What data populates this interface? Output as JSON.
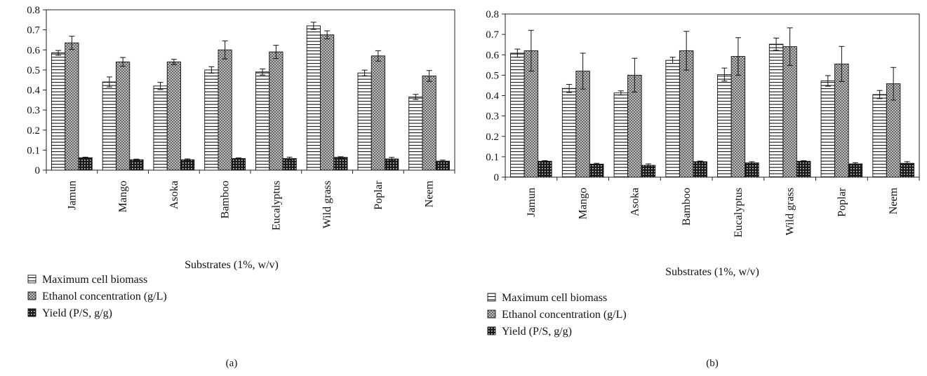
{
  "chart_data": [
    {
      "type": "bar",
      "panel_label": "(a)",
      "title": "",
      "xlabel": "Substrates (1%, w/v)",
      "ylabel": "",
      "ylim": [
        0,
        0.8
      ],
      "yticks": [
        "0",
        "0.1",
        "0.2",
        "0.3",
        "0.4",
        "0.5",
        "0.6",
        "0.7",
        "0.8"
      ],
      "grid": false,
      "legend_position": "bottom-left",
      "categories": [
        "Jamun",
        "Mango",
        "Asoka",
        "Bamboo",
        "Eucalyptus",
        "Wild grass",
        "Poplar",
        "Neem"
      ],
      "series": [
        {
          "name": "Maximum cell biomass",
          "pattern": "horizontal-lines",
          "values": [
            0.585,
            0.44,
            0.42,
            0.5,
            0.49,
            0.72,
            0.485,
            0.365
          ],
          "errors": [
            0.012,
            0.025,
            0.018,
            0.016,
            0.015,
            0.018,
            0.014,
            0.013
          ]
        },
        {
          "name": "Ethanol concentration (g/L)",
          "pattern": "crosshatch",
          "values": [
            0.635,
            0.54,
            0.54,
            0.6,
            0.59,
            0.675,
            0.57,
            0.47
          ],
          "errors": [
            0.033,
            0.022,
            0.013,
            0.045,
            0.033,
            0.02,
            0.026,
            0.027
          ]
        },
        {
          "name": "Yield (P/S, g/g)",
          "pattern": "dense-check",
          "values": [
            0.062,
            0.052,
            0.052,
            0.058,
            0.058,
            0.064,
            0.056,
            0.045
          ],
          "errors": [
            0.003,
            0.003,
            0.004,
            0.003,
            0.007,
            0.003,
            0.008,
            0.005
          ]
        }
      ]
    },
    {
      "type": "bar",
      "panel_label": "(b)",
      "title": "",
      "xlabel": "Substrates (1%, w/v)",
      "ylabel": "",
      "ylim": [
        0,
        0.8
      ],
      "yticks": [
        "0",
        "0.1",
        "0.2",
        "0.3",
        "0.4",
        "0.5",
        "0.6",
        "0.7",
        "0.8"
      ],
      "grid": false,
      "legend_position": "bottom-left",
      "categories": [
        "Jamun",
        "Mango",
        "Asoka",
        "Bamboo",
        "Eucalyptus",
        "Wild grass",
        "Poplar",
        "Neem"
      ],
      "series": [
        {
          "name": "Maximum cell biomass",
          "pattern": "horizontal-lines",
          "values": [
            0.608,
            0.435,
            0.413,
            0.573,
            0.503,
            0.652,
            0.472,
            0.405
          ],
          "errors": [
            0.02,
            0.02,
            0.01,
            0.015,
            0.032,
            0.03,
            0.026,
            0.02
          ]
        },
        {
          "name": "Ethanol concentration (g/L)",
          "pattern": "crosshatch",
          "values": [
            0.62,
            0.52,
            0.5,
            0.62,
            0.592,
            0.64,
            0.555,
            0.458
          ],
          "errors": [
            0.1,
            0.088,
            0.083,
            0.095,
            0.092,
            0.092,
            0.086,
            0.08
          ]
        },
        {
          "name": "Yield (P/S, g/g)",
          "pattern": "dense-check",
          "values": [
            0.078,
            0.064,
            0.058,
            0.076,
            0.07,
            0.078,
            0.065,
            0.068
          ],
          "errors": [
            0.003,
            0.004,
            0.007,
            0.003,
            0.006,
            0.003,
            0.006,
            0.008
          ]
        }
      ]
    }
  ]
}
